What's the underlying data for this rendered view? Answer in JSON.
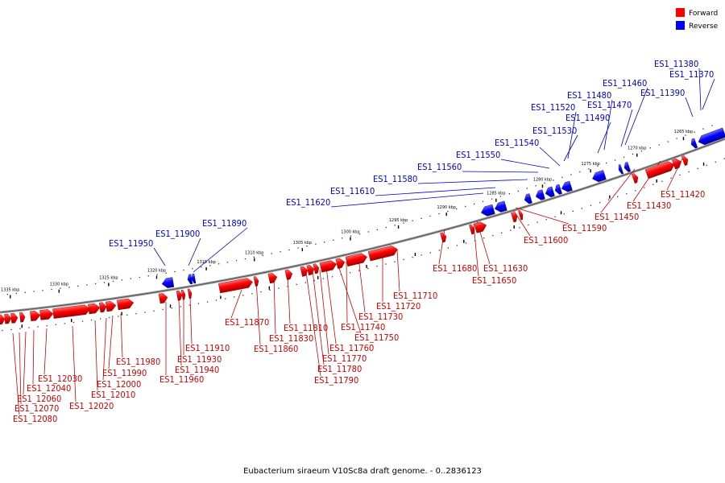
{
  "caption": "Eubacterium siraeum V10Sc8a draft genome. - 0..2836123",
  "legend": [
    {
      "label": "Forward",
      "color": "#ff0000"
    },
    {
      "label": "Reverse",
      "color": "#0000ff"
    }
  ],
  "tick_labels": [
    "1265 kbp",
    "1270 kbp",
    "1275 kbp",
    "1280 kbp",
    "1285 kbp",
    "1290 kbp",
    "1295 kbp",
    "1300 kbp",
    "1305 kbp",
    "1310 kbp",
    "1315 kbp",
    "1320 kbp",
    "1325 kbp",
    "1330 kbp",
    "1335 kbp"
  ],
  "reverse_genes": [
    "ES1_11380",
    "ES1_11370",
    "ES1_11390",
    "ES1_11460",
    "ES1_11470",
    "ES1_11480",
    "ES1_11490",
    "ES1_11520",
    "ES1_11530",
    "ES1_11540",
    "ES1_11550",
    "ES1_11560",
    "ES1_11580",
    "ES1_11610",
    "ES1_11620",
    "ES1_11890",
    "ES1_11900",
    "ES1_11950"
  ],
  "forward_genes": [
    "ES1_11420",
    "ES1_11430",
    "ES1_11450",
    "ES1_11590",
    "ES1_11600",
    "ES1_11630",
    "ES1_11650",
    "ES1_11680",
    "ES1_11710",
    "ES1_11720",
    "ES1_11730",
    "ES1_11740",
    "ES1_11750",
    "ES1_11760",
    "ES1_11770",
    "ES1_11780",
    "ES1_11790",
    "ES1_11810",
    "ES1_11830",
    "ES1_11860",
    "ES1_11870",
    "ES1_11910",
    "ES1_11930",
    "ES1_11940",
    "ES1_11960",
    "ES1_11980",
    "ES1_11990",
    "ES1_12000",
    "ES1_12010",
    "ES1_12020",
    "ES1_12030",
    "ES1_12040",
    "ES1_12060",
    "ES1_12070",
    "ES1_12080"
  ]
}
